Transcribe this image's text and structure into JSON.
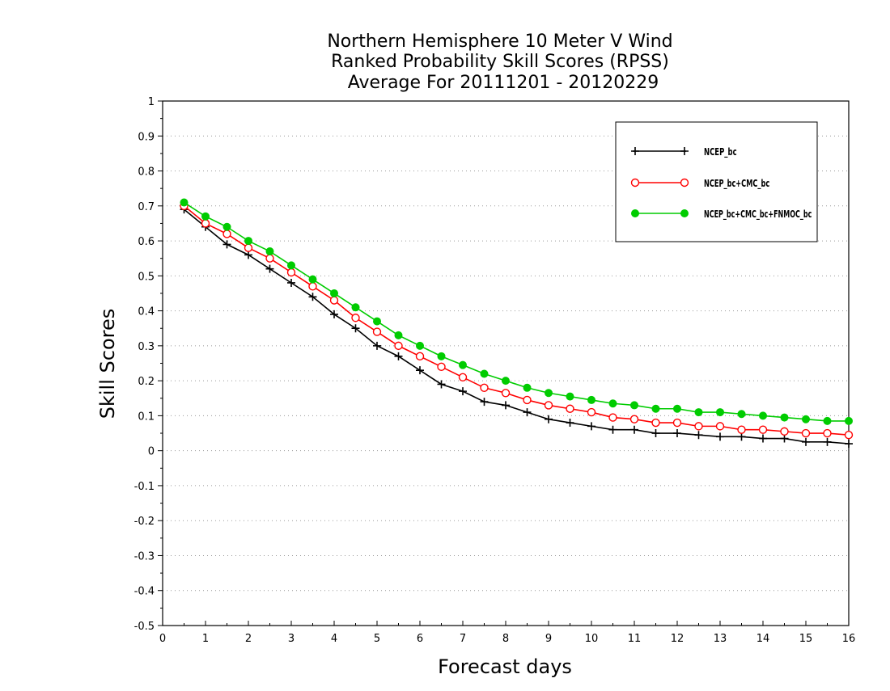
{
  "chart_data": {
    "type": "line",
    "title": [
      "Northern Hemisphere 10 Meter V Wind",
      "Ranked Probability Skill Scores (RPSS)",
      "Average For 20111201 - 20120229"
    ],
    "xlabel": "Forecast days",
    "ylabel": "Skill Scores",
    "xlim": [
      0,
      16
    ],
    "ylim": [
      -0.5,
      1
    ],
    "x_ticks": [
      0,
      1,
      2,
      3,
      4,
      5,
      6,
      7,
      8,
      9,
      10,
      11,
      12,
      13,
      14,
      15,
      16
    ],
    "y_ticks": [
      -0.5,
      -0.4,
      -0.3,
      -0.2,
      -0.1,
      0,
      0.1,
      0.2,
      0.3,
      0.4,
      0.5,
      0.6,
      0.7,
      0.8,
      0.9,
      1
    ],
    "y_tick_labels": [
      "-0.5",
      "-0.4",
      "-0.3",
      "-0.2",
      "-0.1",
      "0",
      "0.1",
      "0.2",
      "0.3",
      "0.4",
      "0.5",
      "0.6",
      "0.7",
      "0.8",
      "0.9",
      "1"
    ],
    "grid": "horizontal dotted",
    "legend_position": "top-right",
    "x": [
      0.5,
      1,
      1.5,
      2,
      2.5,
      3,
      3.5,
      4,
      4.5,
      5,
      5.5,
      6,
      6.5,
      7,
      7.5,
      8,
      8.5,
      9,
      9.5,
      10,
      10.5,
      11,
      11.5,
      12,
      12.5,
      13,
      13.5,
      14,
      14.5,
      15,
      15.5,
      16
    ],
    "series": [
      {
        "name": "NCEP_bc",
        "color": "#000000",
        "marker": "plus",
        "values": [
          0.69,
          0.64,
          0.59,
          0.56,
          0.52,
          0.48,
          0.44,
          0.39,
          0.35,
          0.3,
          0.27,
          0.23,
          0.19,
          0.17,
          0.14,
          0.13,
          0.11,
          0.09,
          0.08,
          0.07,
          0.06,
          0.06,
          0.05,
          0.05,
          0.045,
          0.04,
          0.04,
          0.035,
          0.035,
          0.025,
          0.025,
          0.02
        ]
      },
      {
        "name": "NCEP_bc+CMC_bc",
        "color": "#ff0000",
        "marker": "open-circle",
        "values": [
          0.7,
          0.65,
          0.62,
          0.58,
          0.55,
          0.51,
          0.47,
          0.43,
          0.38,
          0.34,
          0.3,
          0.27,
          0.24,
          0.21,
          0.18,
          0.165,
          0.145,
          0.13,
          0.12,
          0.11,
          0.095,
          0.09,
          0.08,
          0.08,
          0.07,
          0.07,
          0.06,
          0.06,
          0.055,
          0.05,
          0.05,
          0.045
        ]
      },
      {
        "name": "NCEP_bc+CMC_bc+FNMOC_bc",
        "color": "#00cc00",
        "marker": "filled-circle",
        "values": [
          0.71,
          0.67,
          0.64,
          0.6,
          0.57,
          0.53,
          0.49,
          0.45,
          0.41,
          0.37,
          0.33,
          0.3,
          0.27,
          0.245,
          0.22,
          0.2,
          0.18,
          0.165,
          0.155,
          0.145,
          0.135,
          0.13,
          0.12,
          0.12,
          0.11,
          0.11,
          0.105,
          0.1,
          0.095,
          0.09,
          0.085,
          0.085
        ]
      }
    ]
  }
}
